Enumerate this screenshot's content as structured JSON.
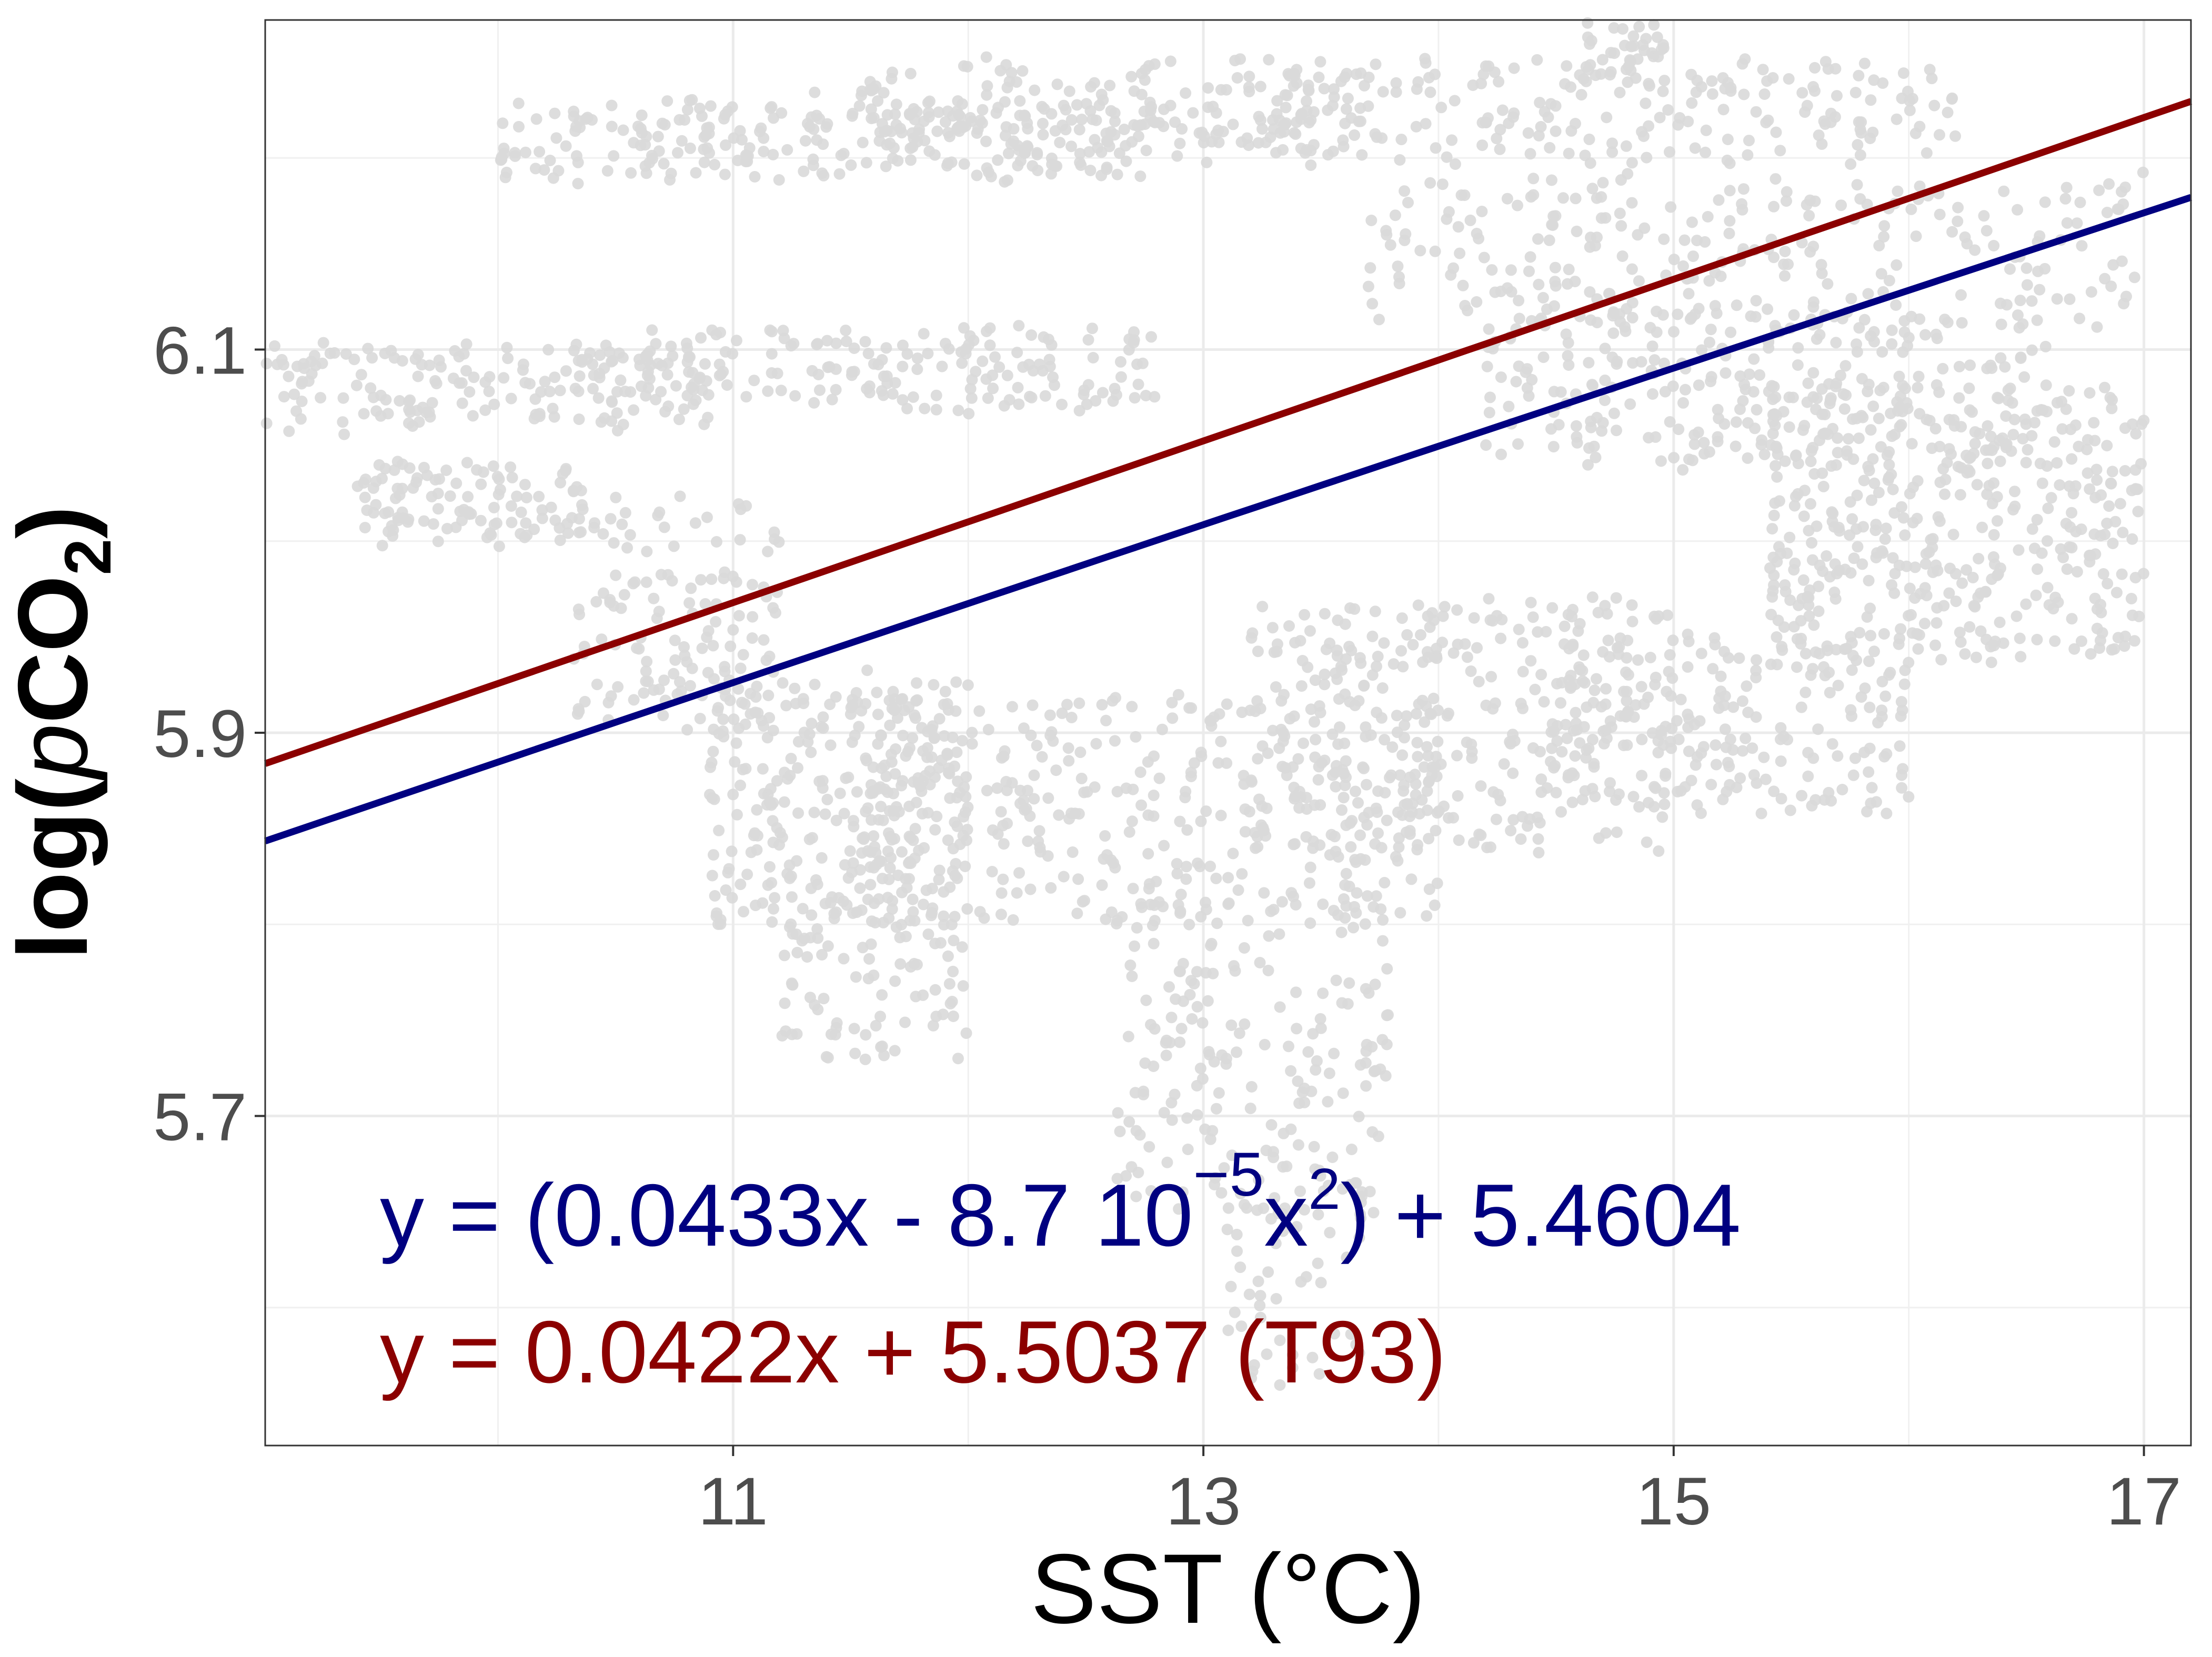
{
  "chart_data": {
    "type": "scatter",
    "title": "",
    "xlabel": "SST (°C)",
    "ylabel_parts": {
      "prefix": "log(",
      "italic": "p",
      "main": "CO",
      "sub": "2",
      "suffix": ")"
    },
    "xlim": [
      9.01,
      17.2
    ],
    "ylim": [
      5.528,
      6.272
    ],
    "x_ticks": [
      11,
      13,
      15,
      17
    ],
    "x_tick_labels": [
      "11",
      "13",
      "15",
      "17"
    ],
    "x_minor": [
      10,
      12,
      14,
      16
    ],
    "y_ticks": [
      5.7,
      5.9,
      6.1
    ],
    "y_tick_labels": [
      "5.7",
      "5.9",
      "6.1"
    ],
    "y_minor": [
      5.6,
      5.8,
      6.0,
      6.2
    ],
    "grid": true,
    "point_color": "#d9d9d9",
    "scatter_clouds_note": "approximate point density regions in data units [xmin,xmax,ymin,ymax,count]",
    "scatter_clouds": [
      [
        10.0,
        12.8,
        6.19,
        6.23,
        260
      ],
      [
        11.5,
        13.8,
        6.2,
        6.25,
        160
      ],
      [
        13.0,
        16.2,
        6.2,
        6.25,
        220
      ],
      [
        14.6,
        15.0,
        6.24,
        6.27,
        40
      ],
      [
        9.0,
        10.9,
        6.06,
        6.1,
        180
      ],
      [
        10.6,
        12.8,
        6.07,
        6.11,
        170
      ],
      [
        9.4,
        10.4,
        6.0,
        6.04,
        110
      ],
      [
        10.3,
        11.2,
        5.9,
        6.02,
        140
      ],
      [
        10.9,
        12.0,
        5.8,
        5.93,
        260
      ],
      [
        11.5,
        14.0,
        5.8,
        5.92,
        380
      ],
      [
        11.2,
        12.0,
        5.73,
        5.8,
        80
      ],
      [
        12.6,
        13.8,
        5.65,
        5.82,
        200
      ],
      [
        13.1,
        13.7,
        5.56,
        5.66,
        50
      ],
      [
        13.2,
        15.0,
        5.84,
        5.97,
        320
      ],
      [
        14.5,
        16.0,
        5.86,
        5.95,
        220
      ],
      [
        15.4,
        17.0,
        5.94,
        6.08,
        420
      ],
      [
        14.2,
        16.6,
        6.04,
        6.12,
        260
      ],
      [
        13.7,
        17.0,
        6.11,
        6.19,
        260
      ]
    ],
    "series": [
      {
        "name": "y = (0.0433x - 8.7 10^-5 x²) + 5.4604",
        "type": "line",
        "color": "#000080",
        "a": 0.0433,
        "b": -8.7e-05,
        "c": 5.4604
      },
      {
        "name": "y = 0.0422x + 5.5037 (T93)",
        "type": "line",
        "color": "#8b0000",
        "a": 0.0422,
        "b": 0,
        "c": 5.5037
      }
    ],
    "annotations": {
      "blue": {
        "lead": "y = (0.0433x - 8.7 10",
        "sup5": "−5",
        "x2": "x",
        "sup2": "2",
        "tail": ") + 5.4604"
      },
      "red": "y = 0.0422x + 5.5037 (T93)"
    }
  }
}
